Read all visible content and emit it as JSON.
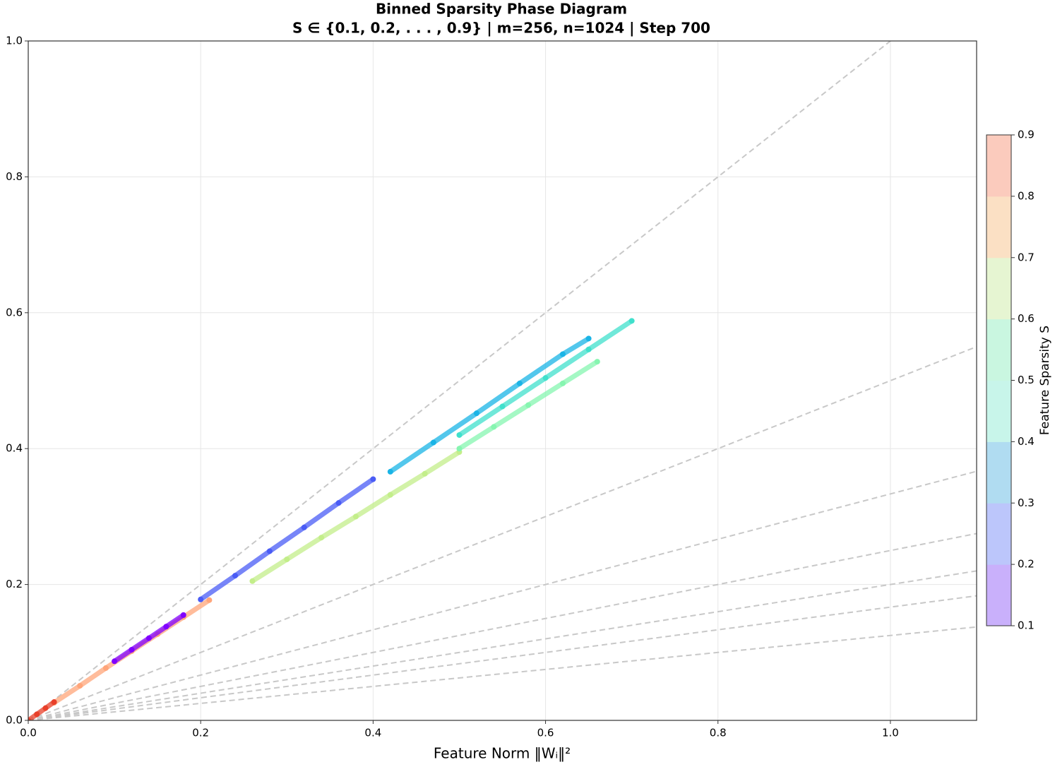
{
  "chart_data": {
    "type": "scatter",
    "title": "Binned Sparsity Phase Diagram",
    "subtitle": "S ∈ {0.1, 0.2, . . . , 0.9} | m=256, n=1024 | Step 700",
    "x_label": "Feature Norm ‖Wᵢ‖²",
    "xlim": [
      0,
      1.1
    ],
    "ylim": [
      0,
      1.0
    ],
    "xticks": [
      {
        "value": 0,
        "label": "0.0"
      },
      0.2,
      0.4,
      0.6,
      0.8,
      {
        "value": 1,
        "label": "1.0"
      }
    ],
    "yticks": [
      {
        "value": 0,
        "label": "0.0"
      },
      0.2,
      0.4,
      0.6,
      0.8,
      {
        "value": 1,
        "label": "1.0"
      }
    ],
    "grid": true,
    "reference_slopes": [
      1,
      0.5,
      0.3333,
      0.25,
      0.2,
      0.1667,
      0.125
    ],
    "series": [
      {
        "color": "#ffa57a",
        "x": [
          0.03,
          0.06,
          0.09,
          0.12,
          0.15,
          0.18,
          0.21
        ],
        "values": [
          0.026,
          0.051,
          0.077,
          0.102,
          0.127,
          0.152,
          0.177
        ]
      },
      {
        "color": "#e8402a",
        "x": [
          0.0,
          0.01,
          0.02,
          0.03
        ],
        "values": [
          0,
          0.009,
          0.018,
          0.027
        ]
      },
      {
        "color": "#8000ff",
        "x": [
          0.1,
          0.12,
          0.14,
          0.16,
          0.18
        ],
        "values": [
          0.087,
          0.104,
          0.121,
          0.138,
          0.155
        ]
      },
      {
        "color": "#4a5cf5",
        "x": [
          0.2,
          0.24,
          0.28,
          0.32,
          0.36,
          0.4
        ],
        "values": [
          0.178,
          0.213,
          0.249,
          0.284,
          0.32,
          0.355
        ]
      },
      {
        "color": "#c3ee8a",
        "x": [
          0.26,
          0.3,
          0.34,
          0.38,
          0.42,
          0.46,
          0.5
        ],
        "values": [
          0.205,
          0.237,
          0.269,
          0.3,
          0.332,
          0.363,
          0.395
        ]
      },
      {
        "color": "#1ab4e6",
        "x": [
          0.42,
          0.47,
          0.52,
          0.57,
          0.62,
          0.65
        ],
        "values": [
          0.366,
          0.409,
          0.452,
          0.496,
          0.539,
          0.562
        ]
      },
      {
        "color": "#86f5b0",
        "x": [
          0.5,
          0.54,
          0.58,
          0.62,
          0.66
        ],
        "values": [
          0.4,
          0.432,
          0.464,
          0.496,
          0.528
        ]
      },
      {
        "color": "#40e0cc",
        "x": [
          0.5,
          0.55,
          0.6,
          0.65,
          0.7
        ],
        "values": [
          0.42,
          0.462,
          0.504,
          0.546,
          0.588
        ]
      }
    ],
    "colorbar": {
      "label": "Feature Sparsity S",
      "lim": [
        0.1,
        0.9
      ],
      "ticks": [
        0.1,
        0.2,
        0.3,
        0.4,
        0.5,
        0.6,
        0.7,
        0.8,
        0.9
      ],
      "colors": [
        "#c9b0fb",
        "#bcc6fb",
        "#b0dcf1",
        "#c8f5ea",
        "#c9f6e0",
        "#e6f5d2",
        "#fbe0c4",
        "#fbcbbd"
      ]
    }
  }
}
